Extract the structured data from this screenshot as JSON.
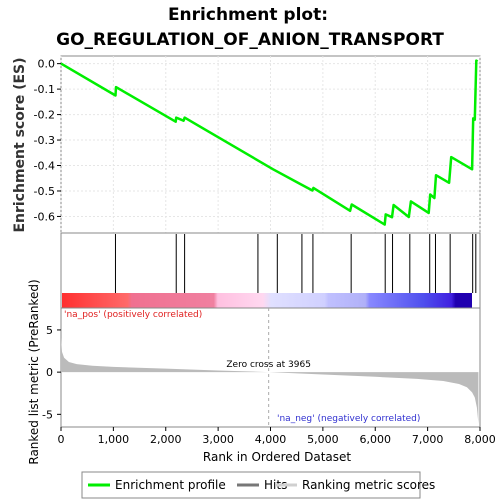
{
  "chart_data": [
    {
      "type": "line",
      "title_line1": "Enrichment plot:",
      "title_line2": "GO_REGULATION_OF_ANION_TRANSPORT",
      "ylabel": "Enrichment score (ES)",
      "xlim": [
        0,
        8000
      ],
      "ylim": [
        -0.665,
        0.03
      ],
      "y_ticks": [
        0.0,
        -0.1,
        -0.2,
        -0.3,
        -0.4,
        -0.5,
        -0.6
      ],
      "y_tick_labels": [
        "0.0",
        "-0.1",
        "-0.2",
        "-0.3",
        "-0.4",
        "-0.5",
        "-0.6"
      ],
      "grid": true,
      "line_color": "#00ee00",
      "series": [
        {
          "name": "Enrichment profile",
          "x": [
            0,
            1040,
            1050,
            2190,
            2200,
            2340,
            2360,
            4050,
            4590,
            4600,
            4800,
            4820,
            5520,
            5550,
            6180,
            6200,
            6320,
            6350,
            6640,
            6680,
            7020,
            7050,
            7130,
            7160,
            7410,
            7450,
            7850,
            7870,
            7900,
            7930,
            7950
          ],
          "y": [
            0.0,
            -0.125,
            -0.092,
            -0.228,
            -0.212,
            -0.224,
            -0.212,
            -0.415,
            -0.475,
            -0.476,
            -0.498,
            -0.488,
            -0.578,
            -0.553,
            -0.632,
            -0.592,
            -0.603,
            -0.555,
            -0.602,
            -0.541,
            -0.586,
            -0.514,
            -0.528,
            -0.438,
            -0.468,
            -0.367,
            -0.415,
            -0.215,
            -0.22,
            0.012,
            0.008
          ]
        }
      ]
    },
    {
      "type": "hits",
      "name": "Hits",
      "hit_positions": [
        1040,
        2200,
        2360,
        3760,
        4130,
        4600,
        4810,
        5540,
        6190,
        6330,
        6660,
        7040,
        7150,
        7430,
        7860,
        7920
      ]
    },
    {
      "type": "area",
      "name": "Ranking metric scores",
      "ylabel": "Ranked list metric (PreRanked)",
      "xlabel": "Rank in Ordered Dataset",
      "xlim": [
        0,
        8000
      ],
      "ylim": [
        -6.5,
        7.6
      ],
      "x_ticks": [
        0,
        1000,
        2000,
        3000,
        4000,
        5000,
        6000,
        7000,
        8000
      ],
      "x_tick_labels": [
        "0",
        "1,000",
        "2,000",
        "3,000",
        "4,000",
        "5,000",
        "6,000",
        "7,000",
        "8,000"
      ],
      "y_ticks": [
        5,
        0,
        -5
      ],
      "y_tick_labels": [
        "5",
        "0",
        "-5"
      ],
      "fill_color": "#bbbbbb",
      "profile_x": [
        0,
        20,
        60,
        150,
        300,
        600,
        1000,
        2000,
        3000,
        3965,
        5000,
        6000,
        6800,
        7300,
        7600,
        7750,
        7850,
        7900,
        7940,
        7970
      ],
      "profile_y": [
        4.1,
        2.4,
        1.7,
        1.2,
        0.95,
        0.75,
        0.62,
        0.42,
        0.2,
        0.0,
        -0.28,
        -0.55,
        -0.8,
        -1.05,
        -1.4,
        -1.8,
        -2.4,
        -3.0,
        -4.2,
        -6.1
      ],
      "zero_cross_label": "Zero cross at 3965",
      "zero_cross_x": 3965,
      "pos_label": "'na_pos' (positively correlated)",
      "neg_label": "'na_neg' (negatively correlated)"
    }
  ],
  "legend": {
    "items": [
      {
        "label": "Enrichment profile",
        "color": "#00ee00"
      },
      {
        "label": "Hits",
        "color": "#777777"
      },
      {
        "label": "Ranking metric scores",
        "color": "#d0d0d0"
      }
    ]
  },
  "colors": {
    "pos_text": "#e02020",
    "neg_text": "#3030d0",
    "zero_line": "#aaaaaa"
  }
}
